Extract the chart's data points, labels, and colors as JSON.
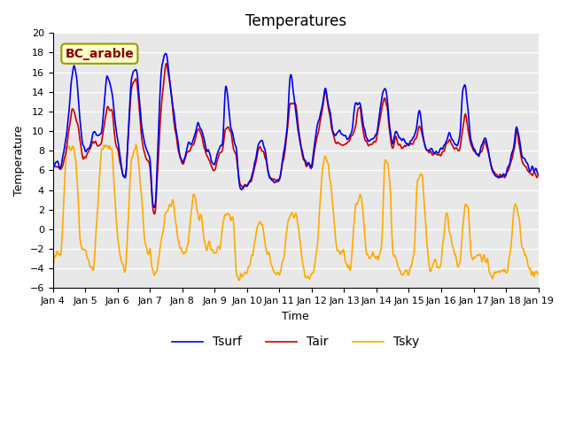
{
  "title": "Temperatures",
  "xlabel": "Time",
  "ylabel": "Temperature",
  "annotation": "BC_arable",
  "ylim": [
    -6,
    20
  ],
  "tick_labels": [
    "Jan 4",
    "Jan 5",
    "Jan 6",
    "Jan 7",
    "Jan 8",
    "Jan 9",
    "Jan 10",
    "Jan 11",
    "Jan 12",
    "Jan 13",
    "Jan 14",
    "Jan 15",
    "Jan 16",
    "Jan 17",
    "Jan 18",
    "Jan 19"
  ],
  "tick_positions": [
    0,
    24,
    48,
    72,
    96,
    120,
    144,
    168,
    192,
    216,
    240,
    264,
    288,
    312,
    336,
    360
  ],
  "colors": {
    "Tair": "#cc0000",
    "Tsurf": "#0000ee",
    "Tsky": "#ffaa00",
    "background_plot": "#e8e8e8",
    "background_fig": "#ffffff",
    "annotation_bg": "#ffffcc",
    "annotation_fg": "#880000",
    "annotation_border": "#999900"
  },
  "line_widths": {
    "Tair": 1.2,
    "Tsurf": 1.2,
    "Tsky": 1.2
  },
  "legend_fontsize": 10,
  "title_fontsize": 12,
  "axis_label_fontsize": 9,
  "tick_fontsize": 8
}
